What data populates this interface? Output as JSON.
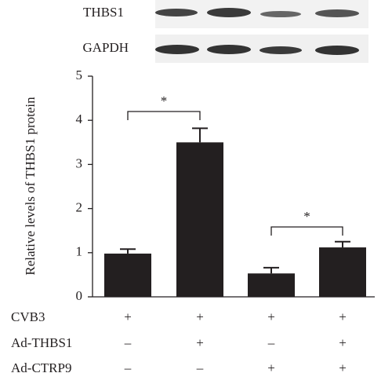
{
  "chart_data": {
    "type": "bar",
    "blot_labels": [
      "THBS1",
      "GAPDH"
    ],
    "y_label": "Relative levels of THBS1 protein",
    "categories": [
      null,
      null,
      null,
      null
    ],
    "values": [
      0.98,
      3.5,
      0.53,
      1.12
    ],
    "errors": [
      0.1,
      0.32,
      0.13,
      0.13
    ],
    "color": "#231f20",
    "ylim": [
      0,
      5
    ],
    "yticks": [
      0,
      1,
      2,
      3,
      4,
      5
    ],
    "annotations": [
      "*",
      "*"
    ],
    "conditions": [
      {
        "label": "CVB3",
        "values": [
          "+",
          "+",
          "+",
          "+"
        ]
      },
      {
        "label": "Ad-THBS1",
        "values": [
          "–",
          "+",
          "–",
          "+"
        ]
      },
      {
        "label": "Ad-CTRP9",
        "values": [
          "–",
          "–",
          "+",
          "+"
        ]
      }
    ]
  }
}
